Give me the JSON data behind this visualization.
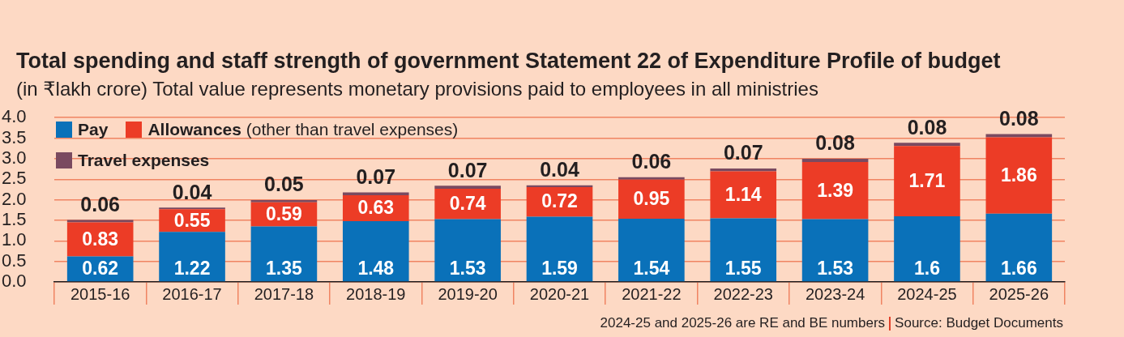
{
  "chart_data": {
    "type": "bar",
    "title": "Total spending and staff strength of government Statement 22 of Expenditure Profile of budget",
    "subtitle": "(in ₹lakh crore) Total value represents monetary provisions paid to employees in all ministries",
    "categories": [
      "2015-16",
      "2016-17",
      "2017-18",
      "2018-19",
      "2019-20",
      "2020-21",
      "2021-22",
      "2022-23",
      "2023-24",
      "2024-25",
      "2025-26"
    ],
    "series": [
      {
        "name": "Pay",
        "color": "#0a71b9",
        "values": [
          0.62,
          1.22,
          1.35,
          1.48,
          1.53,
          1.59,
          1.54,
          1.55,
          1.53,
          1.6,
          1.66
        ]
      },
      {
        "name": "Allowances (other than travel expenses)",
        "color": "#ec3c26",
        "values": [
          0.83,
          0.55,
          0.59,
          0.63,
          0.74,
          0.72,
          0.95,
          1.14,
          1.39,
          1.71,
          1.86
        ]
      },
      {
        "name": "Travel expenses",
        "color": "#7a4a60",
        "values": [
          0.06,
          0.04,
          0.05,
          0.07,
          0.07,
          0.04,
          0.06,
          0.07,
          0.08,
          0.08,
          0.08
        ]
      }
    ],
    "stacked": true,
    "ylim": [
      0,
      4
    ],
    "yticks": [
      {
        "value": 0,
        "label": "0.0"
      },
      0.5,
      {
        "value": 1,
        "label": "1.0"
      },
      1.5,
      {
        "value": 2,
        "label": "2.0"
      },
      2.5,
      {
        "value": 3,
        "label": "3.0"
      },
      3.5,
      {
        "value": 4,
        "label": "4.0"
      }
    ],
    "grid": "y",
    "legend": "top left",
    "data_labels": true,
    "annotations": [
      "2024-25 and 2025-26 are RE and BE numbers",
      "Source: Budget Documents"
    ]
  }
}
